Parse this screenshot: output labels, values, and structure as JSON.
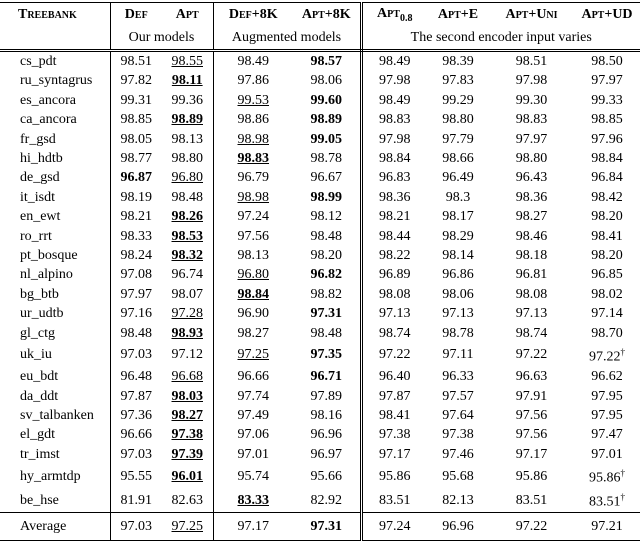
{
  "header": {
    "columns": [
      {
        "label": "Treebank"
      },
      {
        "label": "Def"
      },
      {
        "label": "Apt"
      },
      {
        "label": "Def+8K"
      },
      {
        "label": "Apt+8K"
      },
      {
        "label": "Apt",
        "sub": "0.8"
      },
      {
        "label": "Apt+E"
      },
      {
        "label": "Apt+Uni"
      },
      {
        "label": "Apt+UD"
      }
    ],
    "groups": [
      "Our models",
      "Augmented models",
      "The second encoder input varies"
    ]
  },
  "rows": [
    {
      "name": "cs_pdt",
      "values": [
        "98.51",
        "98.55",
        "98.49",
        "98.57",
        "98.49",
        "98.39",
        "98.51",
        "98.50"
      ],
      "bold": [
        3
      ],
      "underline": [
        1
      ]
    },
    {
      "name": "ru_syntagrus",
      "values": [
        "97.82",
        "98.11",
        "97.86",
        "98.06",
        "97.98",
        "97.83",
        "97.98",
        "97.97"
      ],
      "bold": [
        1
      ],
      "underline": [
        1
      ]
    },
    {
      "name": "es_ancora",
      "values": [
        "99.31",
        "99.36",
        "99.53",
        "99.60",
        "98.49",
        "99.29",
        "99.30",
        "99.33"
      ],
      "bold": [
        3
      ],
      "underline": [
        2
      ]
    },
    {
      "name": "ca_ancora",
      "values": [
        "98.85",
        "98.89",
        "98.86",
        "98.89",
        "98.83",
        "98.80",
        "98.83",
        "98.85"
      ],
      "bold": [
        1,
        3
      ],
      "underline": [
        1
      ]
    },
    {
      "name": "fr_gsd",
      "values": [
        "98.05",
        "98.13",
        "98.98",
        "99.05",
        "97.98",
        "97.79",
        "97.97",
        "97.96"
      ],
      "bold": [
        3
      ],
      "underline": [
        2
      ]
    },
    {
      "name": "hi_hdtb",
      "values": [
        "98.77",
        "98.80",
        "98.83",
        "98.78",
        "98.84",
        "98.66",
        "98.80",
        "98.84"
      ],
      "bold": [
        2
      ],
      "underline": [
        2
      ]
    },
    {
      "name": "de_gsd",
      "values": [
        "96.87",
        "96.80",
        "96.79",
        "96.67",
        "96.83",
        "96.49",
        "96.43",
        "96.84"
      ],
      "bold": [
        0
      ],
      "underline": [
        1
      ]
    },
    {
      "name": "it_isdt",
      "values": [
        "98.19",
        "98.48",
        "98.98",
        "98.99",
        "98.36",
        "98.3",
        "98.36",
        "98.42"
      ],
      "bold": [
        3
      ],
      "underline": [
        2
      ]
    },
    {
      "name": "en_ewt",
      "values": [
        "98.21",
        "98.26",
        "97.24",
        "98.12",
        "98.21",
        "98.17",
        "98.27",
        "98.20"
      ],
      "bold": [
        1
      ],
      "underline": [
        1
      ]
    },
    {
      "name": "ro_rrt",
      "values": [
        "98.33",
        "98.53",
        "97.56",
        "98.48",
        "98.44",
        "98.29",
        "98.46",
        "98.41"
      ],
      "bold": [
        1
      ],
      "underline": [
        1
      ]
    },
    {
      "name": "pt_bosque",
      "values": [
        "98.24",
        "98.32",
        "98.13",
        "98.20",
        "98.22",
        "98.14",
        "98.18",
        "98.20"
      ],
      "bold": [
        1
      ],
      "underline": [
        1
      ]
    },
    {
      "name": "nl_alpino",
      "values": [
        "97.08",
        "96.74",
        "96.80",
        "96.82",
        "96.89",
        "96.86",
        "96.81",
        "96.85"
      ],
      "bold": [
        3
      ],
      "underline": [
        2
      ]
    },
    {
      "name": "bg_btb",
      "values": [
        "97.97",
        "98.07",
        "98.84",
        "98.82",
        "98.08",
        "98.06",
        "98.08",
        "98.02"
      ],
      "bold": [
        2
      ],
      "underline": [
        2
      ]
    },
    {
      "name": "ur_udtb",
      "values": [
        "97.16",
        "97.28",
        "96.90",
        "97.31",
        "97.13",
        "97.13",
        "97.13",
        "97.14"
      ],
      "bold": [
        3
      ],
      "underline": [
        1
      ]
    },
    {
      "name": "gl_ctg",
      "values": [
        "98.48",
        "98.93",
        "98.27",
        "98.48",
        "98.74",
        "98.78",
        "98.74",
        "98.70"
      ],
      "bold": [
        1
      ],
      "underline": [
        1
      ]
    },
    {
      "name": "uk_iu",
      "values": [
        "97.03",
        "97.12",
        "97.25",
        "97.35",
        "97.22",
        "97.11",
        "97.22",
        {
          "text": "97.22",
          "sup": "†"
        }
      ],
      "bold": [
        3
      ],
      "underline": [
        2
      ]
    },
    {
      "name": "eu_bdt",
      "values": [
        "96.48",
        "96.68",
        "96.66",
        "96.71",
        "96.40",
        "96.33",
        "96.63",
        "96.62"
      ],
      "bold": [
        3
      ],
      "underline": [
        1
      ]
    },
    {
      "name": "da_ddt",
      "values": [
        "97.87",
        "98.03",
        "97.74",
        "97.89",
        "97.87",
        "97.57",
        "97.91",
        "97.95"
      ],
      "bold": [
        1
      ],
      "underline": [
        1
      ]
    },
    {
      "name": "sv_talbanken",
      "values": [
        "97.36",
        "98.27",
        "97.49",
        "98.16",
        "98.41",
        "97.64",
        "97.56",
        "97.95"
      ],
      "bold": [
        1
      ],
      "underline": [
        1
      ]
    },
    {
      "name": "el_gdt",
      "values": [
        "96.66",
        "97.38",
        "97.06",
        "96.96",
        "97.38",
        "97.38",
        "97.56",
        "97.47"
      ],
      "bold": [
        1
      ],
      "underline": [
        1
      ]
    },
    {
      "name": "tr_imst",
      "values": [
        "97.03",
        "97.39",
        "97.01",
        "96.97",
        "97.17",
        "97.46",
        "97.17",
        "97.01"
      ],
      "bold": [
        1
      ],
      "underline": [
        1
      ]
    },
    {
      "name": "hy_armtdp",
      "values": [
        "95.55",
        "96.01",
        "95.74",
        "95.66",
        "95.86",
        "95.68",
        "95.86",
        {
          "text": "95.86",
          "sup": "†"
        }
      ],
      "bold": [
        1
      ],
      "underline": [
        1
      ]
    },
    {
      "name": "be_hse",
      "values": [
        "81.91",
        "82.63",
        "83.33",
        "82.92",
        "83.51",
        "82.13",
        "83.51",
        {
          "text": "83.51",
          "sup": "†"
        }
      ],
      "bold": [
        2
      ],
      "underline": [
        2
      ]
    }
  ],
  "average": {
    "name": "Average",
    "values": [
      "97.03",
      "97.25",
      "97.17",
      "97.31",
      "97.24",
      "96.96",
      "97.22",
      "97.21"
    ],
    "bold": [
      3
    ],
    "underline": [
      1
    ]
  }
}
